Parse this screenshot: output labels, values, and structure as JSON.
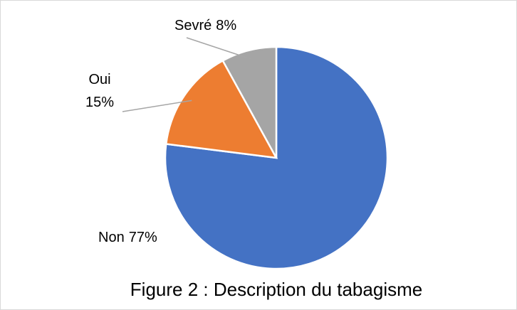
{
  "chart_data": {
    "type": "pie",
    "title": "Figure 2 : Description du tabagisme",
    "categories": [
      "Non",
      "Oui",
      "Sevré"
    ],
    "values": [
      77,
      15,
      8
    ],
    "value_labels": [
      "77%",
      "15%",
      "8%"
    ],
    "colors": [
      "#4472c4",
      "#ed7d31",
      "#a5a5a5"
    ]
  }
}
